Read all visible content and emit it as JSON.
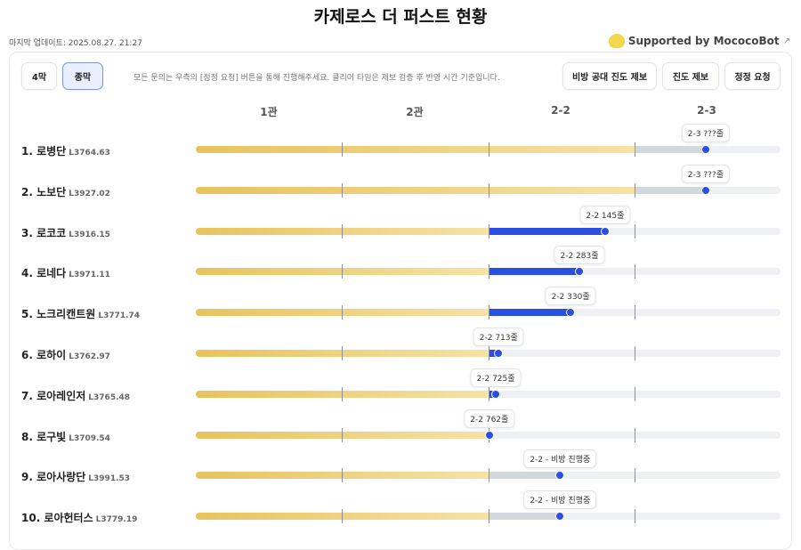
{
  "title": "카제로스 더 퍼스트 현황",
  "last_update": "마지막 업데이트: 2025.08.27. 21:27",
  "supported": "Supported by MococoBot",
  "tabs": [
    {
      "label": "4막",
      "active": false
    },
    {
      "label": "종막",
      "active": true
    }
  ],
  "notice": "모든 문의는 우측의 [정정 요청] 버튼을 통해 진행해주세요. 클리어 타임은 제보 검증 후 반영 시간 기준입니다.",
  "actions": [
    "비방 공대 진도 제보",
    "진도 제보",
    "정정 요청"
  ],
  "stages": [
    "1관",
    "2관",
    "2-2",
    "2-3"
  ],
  "colors": {
    "done": "#e7c35c",
    "cleared_progress": "#2b4fe0",
    "unofficial_progress": "#d3d7de",
    "track": "#eef0f4"
  },
  "rows": [
    {
      "rank": "1. 로병단",
      "level": "L3764.63",
      "label": "2-3 ???줄",
      "progress_pct": 87.2,
      "current_type": "unofficial"
    },
    {
      "rank": "2. 노보단",
      "level": "L3927.02",
      "label": "2-3 ???줄",
      "progress_pct": 87.2,
      "current_type": "unofficial"
    },
    {
      "rank": "3. 로코코",
      "level": "L3916.15",
      "label": "2-2 145줄",
      "progress_pct": 70.0,
      "current_type": "cleared"
    },
    {
      "rank": "4. 로네다",
      "level": "L3971.11",
      "label": "2-2 283줄",
      "progress_pct": 65.6,
      "current_type": "cleared"
    },
    {
      "rank": "5. 노크리캔트원",
      "level": "L3771.74",
      "label": "2-2 330줄",
      "progress_pct": 64.1,
      "current_type": "cleared"
    },
    {
      "rank": "6. 로하이",
      "level": "L3762.97",
      "label": "2-2 713줄",
      "progress_pct": 51.8,
      "current_type": "cleared"
    },
    {
      "rank": "7. 로아레인저",
      "level": "L3765.48",
      "label": "2-2 725줄",
      "progress_pct": 51.3,
      "current_type": "cleared"
    },
    {
      "rank": "8. 로구빛",
      "level": "L3709.54",
      "label": "2-2 762줄",
      "progress_pct": 50.2,
      "current_type": "cleared"
    },
    {
      "rank": "9. 로아사랑단",
      "level": "L3991.53",
      "label": "2-2 - 비방 진행중",
      "progress_pct": 62.3,
      "current_type": "unofficial"
    },
    {
      "rank": "10. 로아헌터스",
      "level": "L3779.19",
      "label": "2-2 - 비방 진행중",
      "progress_pct": 62.3,
      "current_type": "unofficial"
    }
  ]
}
